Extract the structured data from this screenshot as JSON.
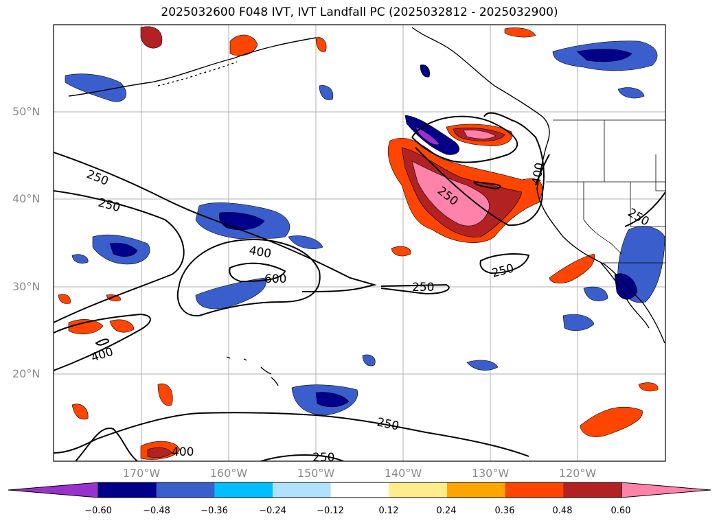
{
  "title": "2025032600 F048 IVT, IVT Landfall PC (2025032812 - 2025032900)",
  "lat_labels": [
    "50°N",
    "40°N",
    "30°N",
    "20°N"
  ],
  "lon_labels": [
    "170°W",
    "160°W",
    "150°W",
    "140°W",
    "130°W",
    "120°W"
  ],
  "contour_labels": [
    "250",
    "250",
    "400",
    "600",
    "250",
    "250",
    "250",
    "400",
    "250",
    "400",
    "400",
    "250",
    "250"
  ],
  "colorbar": {
    "ticks": [
      "−0.60",
      "−0.48",
      "−0.36",
      "−0.24",
      "−0.12",
      "0.12",
      "0.24",
      "0.36",
      "0.48",
      "0.60"
    ],
    "colors": [
      "#9932cc",
      "#00008b",
      "#3a5fcd",
      "#00bfff",
      "#b0e2ff",
      "#ffffff",
      "#ffec8b",
      "#ffa500",
      "#ff4500",
      "#b22222",
      "#ff82ab"
    ]
  },
  "map": {
    "lat_range": [
      10,
      60
    ],
    "lon_range": [
      -180,
      -110
    ],
    "lat_lines": [
      50,
      40,
      30,
      20
    ],
    "lon_lines": [
      -170,
      -160,
      -150,
      -140,
      -130,
      -120
    ]
  }
}
